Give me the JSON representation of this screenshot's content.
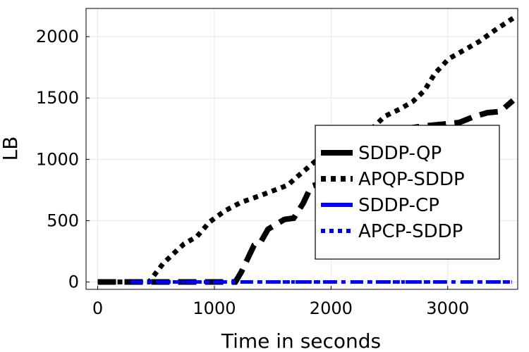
{
  "chart_data": {
    "type": "line",
    "title": "",
    "xlabel": "Time in seconds",
    "ylabel": "LB",
    "xlim": [
      -100,
      3600
    ],
    "ylim": [
      -60,
      2230
    ],
    "xticks": [
      0,
      1000,
      2000,
      3000
    ],
    "yticks": [
      0,
      500,
      1000,
      1500,
      2000
    ],
    "xtick_labels": [
      "0",
      "1000",
      "2000",
      "3000"
    ],
    "ytick_labels": [
      "0",
      "500",
      "1000",
      "1500",
      "2000"
    ],
    "grid": true,
    "legend_position": "right-center",
    "series": [
      {
        "name": "SDDP-QP",
        "color": "#000000",
        "style": "dashed-thick",
        "points": [
          [
            0,
            0
          ],
          [
            1100,
            0
          ],
          [
            1180,
            0
          ],
          [
            1230,
            80
          ],
          [
            1280,
            180
          ],
          [
            1340,
            300
          ],
          [
            1400,
            330
          ],
          [
            1460,
            430
          ],
          [
            1600,
            510
          ],
          [
            1680,
            520
          ],
          [
            1760,
            640
          ],
          [
            1830,
            780
          ],
          [
            1960,
            820
          ],
          [
            2050,
            870
          ],
          [
            2140,
            1010
          ],
          [
            2250,
            1080
          ],
          [
            2380,
            1140
          ],
          [
            2520,
            1200
          ],
          [
            2640,
            1250
          ],
          [
            2780,
            1270
          ],
          [
            3000,
            1290
          ],
          [
            3100,
            1300
          ],
          [
            3230,
            1350
          ],
          [
            3340,
            1380
          ],
          [
            3450,
            1390
          ],
          [
            3560,
            1480
          ]
        ]
      },
      {
        "name": "APQP-SDDP",
        "color": "#000000",
        "style": "dotted-thick",
        "points": [
          [
            0,
            0
          ],
          [
            440,
            0
          ],
          [
            560,
            150
          ],
          [
            660,
            240
          ],
          [
            740,
            310
          ],
          [
            850,
            370
          ],
          [
            960,
            490
          ],
          [
            1090,
            580
          ],
          [
            1230,
            650
          ],
          [
            1380,
            700
          ],
          [
            1520,
            750
          ],
          [
            1630,
            790
          ],
          [
            1700,
            850
          ],
          [
            1860,
            980
          ],
          [
            2060,
            1080
          ],
          [
            2200,
            1180
          ],
          [
            2350,
            1250
          ],
          [
            2460,
            1350
          ],
          [
            2590,
            1410
          ],
          [
            2700,
            1470
          ],
          [
            2800,
            1560
          ],
          [
            2890,
            1700
          ],
          [
            3010,
            1820
          ],
          [
            3140,
            1890
          ],
          [
            3270,
            1960
          ],
          [
            3400,
            2050
          ],
          [
            3560,
            2150
          ]
        ]
      },
      {
        "name": "SDDP-CP",
        "color": "#0000ff",
        "style": "dash-dot",
        "points": [
          [
            280,
            0
          ],
          [
            3550,
            0
          ]
        ]
      },
      {
        "name": "APCP-SDDP",
        "color": "#0000ff",
        "style": "dotted",
        "points": [
          [
            280,
            0
          ],
          [
            3550,
            0
          ]
        ]
      }
    ]
  }
}
